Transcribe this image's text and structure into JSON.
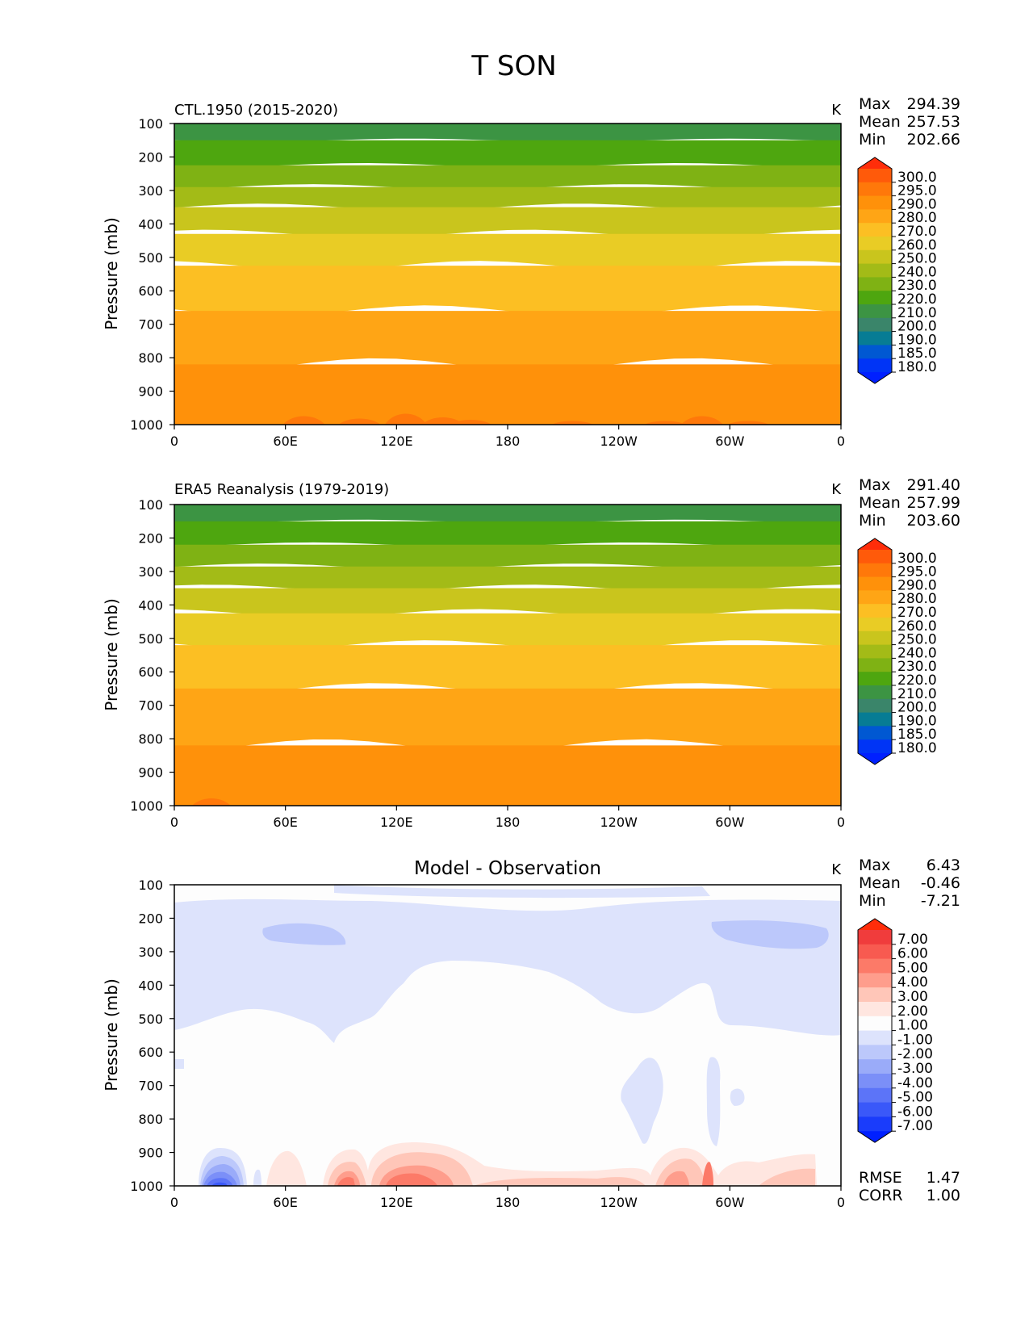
{
  "figure_title": "T SON",
  "chart_data": [
    {
      "type": "contour",
      "title": "CTL.1950 (2015-2020)",
      "units": "K",
      "ylabel": "Pressure (mb)",
      "y_ticks": [
        "100",
        "200",
        "300",
        "400",
        "500",
        "600",
        "700",
        "800",
        "900",
        "1000"
      ],
      "x_ticks": [
        "0",
        "60E",
        "120E",
        "180",
        "120W",
        "60W",
        "0"
      ],
      "xlim": [
        0,
        360
      ],
      "ylim": [
        1000,
        100
      ],
      "stats": [
        {
          "label": "Max",
          "value": "294.39"
        },
        {
          "label": "Mean",
          "value": "257.53"
        },
        {
          "label": "Min",
          "value": "202.66"
        }
      ],
      "colorbar_levels": [
        "300.0",
        "295.0",
        "290.0",
        "280.0",
        "270.0",
        "260.0",
        "250.0",
        "240.0",
        "230.0",
        "220.0",
        "210.0",
        "200.0",
        "190.0",
        "185.0",
        "180.0"
      ],
      "colorbar_colors": [
        "#ff2d0a",
        "#ff5a0a",
        "#ff780a",
        "#ff910a",
        "#ffa515",
        "#fcbf23",
        "#e9cc25",
        "#c9c51d",
        "#a3bb17",
        "#7fb214",
        "#4ea60f",
        "#3c9443",
        "#3a856a",
        "#077c94",
        "#0058d2",
        "#0034f6",
        "#0020ff"
      ],
      "bands": [
        {
          "range": "100-150",
          "color": "#3c9443"
        },
        {
          "range": "150-225",
          "color": "#4ea60f"
        },
        {
          "range": "225-290",
          "color": "#7fb214"
        },
        {
          "range": "290-350",
          "color": "#a3bb17"
        },
        {
          "range": "350-430",
          "color": "#c9c51d"
        },
        {
          "range": "430-525",
          "color": "#e9cc25"
        },
        {
          "range": "525-660",
          "color": "#fcbf23"
        },
        {
          "range": "660-820",
          "color": "#ffa515"
        },
        {
          "range": "820-1000",
          "color": "#ff910a"
        }
      ]
    },
    {
      "type": "contour",
      "title": "ERA5 Reanalysis (1979-2019)",
      "units": "K",
      "ylabel": "Pressure (mb)",
      "y_ticks": [
        "100",
        "200",
        "300",
        "400",
        "500",
        "600",
        "700",
        "800",
        "900",
        "1000"
      ],
      "x_ticks": [
        "0",
        "60E",
        "120E",
        "180",
        "120W",
        "60W",
        "0"
      ],
      "xlim": [
        0,
        360
      ],
      "ylim": [
        1000,
        100
      ],
      "stats": [
        {
          "label": "Max",
          "value": "291.40"
        },
        {
          "label": "Mean",
          "value": "257.99"
        },
        {
          "label": "Min",
          "value": "203.60"
        }
      ],
      "colorbar_levels": [
        "300.0",
        "295.0",
        "290.0",
        "280.0",
        "270.0",
        "260.0",
        "250.0",
        "240.0",
        "230.0",
        "220.0",
        "210.0",
        "200.0",
        "190.0",
        "185.0",
        "180.0"
      ],
      "colorbar_colors": [
        "#ff2d0a",
        "#ff5a0a",
        "#ff780a",
        "#ff910a",
        "#ffa515",
        "#fcbf23",
        "#e9cc25",
        "#c9c51d",
        "#a3bb17",
        "#7fb214",
        "#4ea60f",
        "#3c9443",
        "#3a856a",
        "#077c94",
        "#0058d2",
        "#0034f6",
        "#0020ff"
      ],
      "bands": [
        {
          "range": "100-150",
          "color": "#3c9443"
        },
        {
          "range": "150-220",
          "color": "#4ea60f"
        },
        {
          "range": "220-285",
          "color": "#7fb214"
        },
        {
          "range": "285-350",
          "color": "#a3bb17"
        },
        {
          "range": "350-425",
          "color": "#c9c51d"
        },
        {
          "range": "425-520",
          "color": "#e9cc25"
        },
        {
          "range": "520-650",
          "color": "#fcbf23"
        },
        {
          "range": "650-820",
          "color": "#ffa515"
        },
        {
          "range": "820-1000",
          "color": "#ff910a"
        }
      ]
    },
    {
      "type": "contour",
      "title": "Model - Observation",
      "units": "K",
      "ylabel": "Pressure (mb)",
      "y_ticks": [
        "100",
        "200",
        "300",
        "400",
        "500",
        "600",
        "700",
        "800",
        "900",
        "1000"
      ],
      "x_ticks": [
        "0",
        "60E",
        "120E",
        "180",
        "120W",
        "60W",
        "0"
      ],
      "xlim": [
        0,
        360
      ],
      "ylim": [
        1000,
        100
      ],
      "stats": [
        {
          "label": "Max",
          "value": "6.43"
        },
        {
          "label": "Mean",
          "value": "-0.46"
        },
        {
          "label": "Min",
          "value": "-7.21"
        }
      ],
      "extra_stats": [
        {
          "label": "RMSE",
          "value": "1.47"
        },
        {
          "label": "CORR",
          "value": "1.00"
        }
      ],
      "colorbar_levels": [
        "7.00",
        "6.00",
        "5.00",
        "4.00",
        "3.00",
        "2.00",
        "1.00",
        "-1.00",
        "-2.00",
        "-3.00",
        "-4.00",
        "-5.00",
        "-6.00",
        "-7.00"
      ],
      "colorbar_colors": [
        "#ff2d0a",
        "#f03c3c",
        "#f85a50",
        "#fc7a68",
        "#fe9d8c",
        "#ffc6b8",
        "#ffe6e0",
        "#fdfdfd",
        "#dde3fc",
        "#bcc8fb",
        "#9aabf9",
        "#7b8ff8",
        "#5c74f8",
        "#3a58f9",
        "#1a3cfb",
        "#0020ff"
      ]
    }
  ]
}
